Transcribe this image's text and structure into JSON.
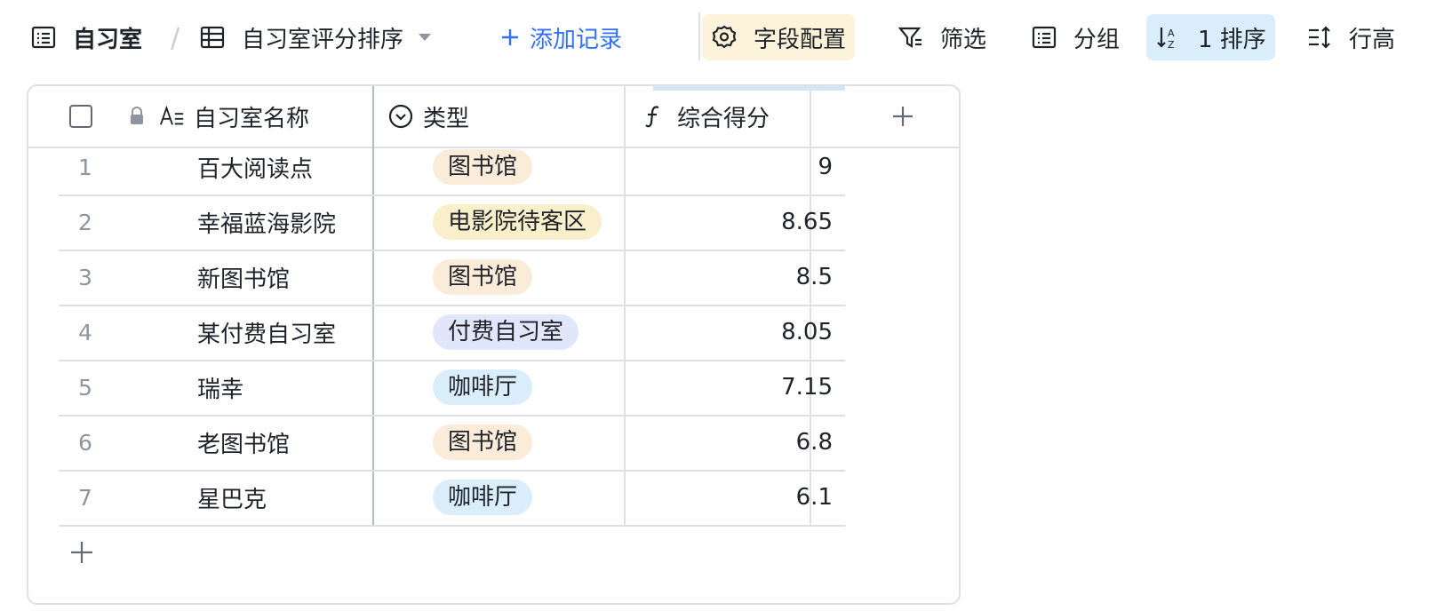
{
  "toolbar": {
    "table_name": "自习室",
    "view_name": "自习室评分排序",
    "add_record": "添加记录",
    "field_config": "字段配置",
    "filter": "筛选",
    "group": "分组",
    "sort": "1 排序",
    "row_height": "行高"
  },
  "columns": {
    "name": "自习室名称",
    "type": "类型",
    "score": "综合得分"
  },
  "rows": [
    {
      "num": "1",
      "name": "百大阅读点",
      "type": "图书馆",
      "score": "9"
    },
    {
      "num": "2",
      "name": "幸福蓝海影院",
      "type": "电影院待客区",
      "score": "8.65"
    },
    {
      "num": "3",
      "name": "新图书馆",
      "type": "图书馆",
      "score": "8.5"
    },
    {
      "num": "4",
      "name": "某付费自习室",
      "type": "付费自习室",
      "score": "8.05"
    },
    {
      "num": "5",
      "name": "瑞幸",
      "type": "咖啡厅",
      "score": "7.15"
    },
    {
      "num": "6",
      "name": "老图书馆",
      "type": "图书馆",
      "score": "6.8"
    },
    {
      "num": "7",
      "name": "星巴克",
      "type": "咖啡厅",
      "score": "6.1"
    }
  ],
  "tag_colors": {
    "图书馆": "#fbecd9",
    "电影院待客区": "#f9efcb",
    "付费自习室": "#e1e7fb",
    "咖啡厅": "#d9eefa"
  },
  "colors": {
    "accent_blue": "#3370ff",
    "field_config_bg": "#fdf3da",
    "sort_bg": "#d9eefa"
  }
}
